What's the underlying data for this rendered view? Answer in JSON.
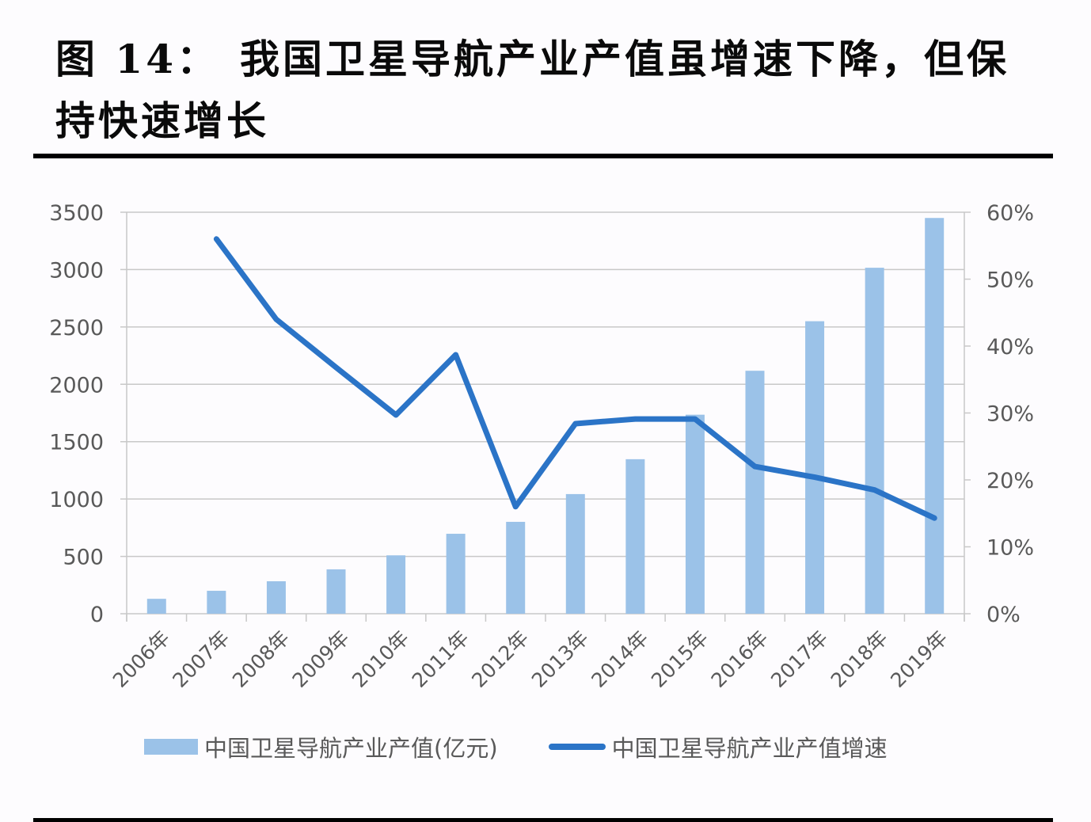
{
  "header": {
    "figure_number": "图 14：",
    "title_line1": "我国卫星导航产业产值虽增速下降，但保",
    "title_line2": "持快速增长"
  },
  "colors": {
    "bar": "#9BC2E8",
    "line": "#2B74C7",
    "grid": "#c8c8c8",
    "axis_text": "#595959"
  },
  "legend": {
    "bar_label": "中国卫星导航产业产值(亿元)",
    "line_label": "中国卫星导航产业产值增速"
  },
  "chart_data": {
    "type": "bar+line",
    "title": "我国卫星导航产业产值虽增速下降，但保持快速增长",
    "categories": [
      "2006年",
      "2007年",
      "2008年",
      "2009年",
      "2010年",
      "2011年",
      "2012年",
      "2013年",
      "2014年",
      "2015年",
      "2016年",
      "2017年",
      "2018年",
      "2019年"
    ],
    "series": [
      {
        "name": "中国卫星导航产业产值(亿元)",
        "type": "bar",
        "axis": "left",
        "values": [
          130,
          200,
          283,
          387,
          509,
          697,
          801,
          1043,
          1347,
          1735,
          2118,
          2550,
          3016,
          3450
        ]
      },
      {
        "name": "中国卫星导航产业产值增速",
        "type": "line",
        "axis": "right",
        "values": [
          null,
          0.56,
          0.44,
          0.368,
          0.297,
          0.387,
          0.16,
          0.284,
          0.291,
          0.291,
          0.22,
          0.204,
          0.185,
          0.143
        ]
      }
    ],
    "y_left": {
      "min": 0,
      "max": 3500,
      "step": 500,
      "ticks": [
        "0",
        "500",
        "1000",
        "1500",
        "2000",
        "2500",
        "3000",
        "3500"
      ]
    },
    "y_right": {
      "min": 0,
      "max": 0.6,
      "step": 0.1,
      "ticks": [
        "0%",
        "10%",
        "20%",
        "30%",
        "40%",
        "50%",
        "60%"
      ]
    },
    "xlabel": "",
    "ylabel": "",
    "grid": true,
    "legend_position": "bottom"
  }
}
